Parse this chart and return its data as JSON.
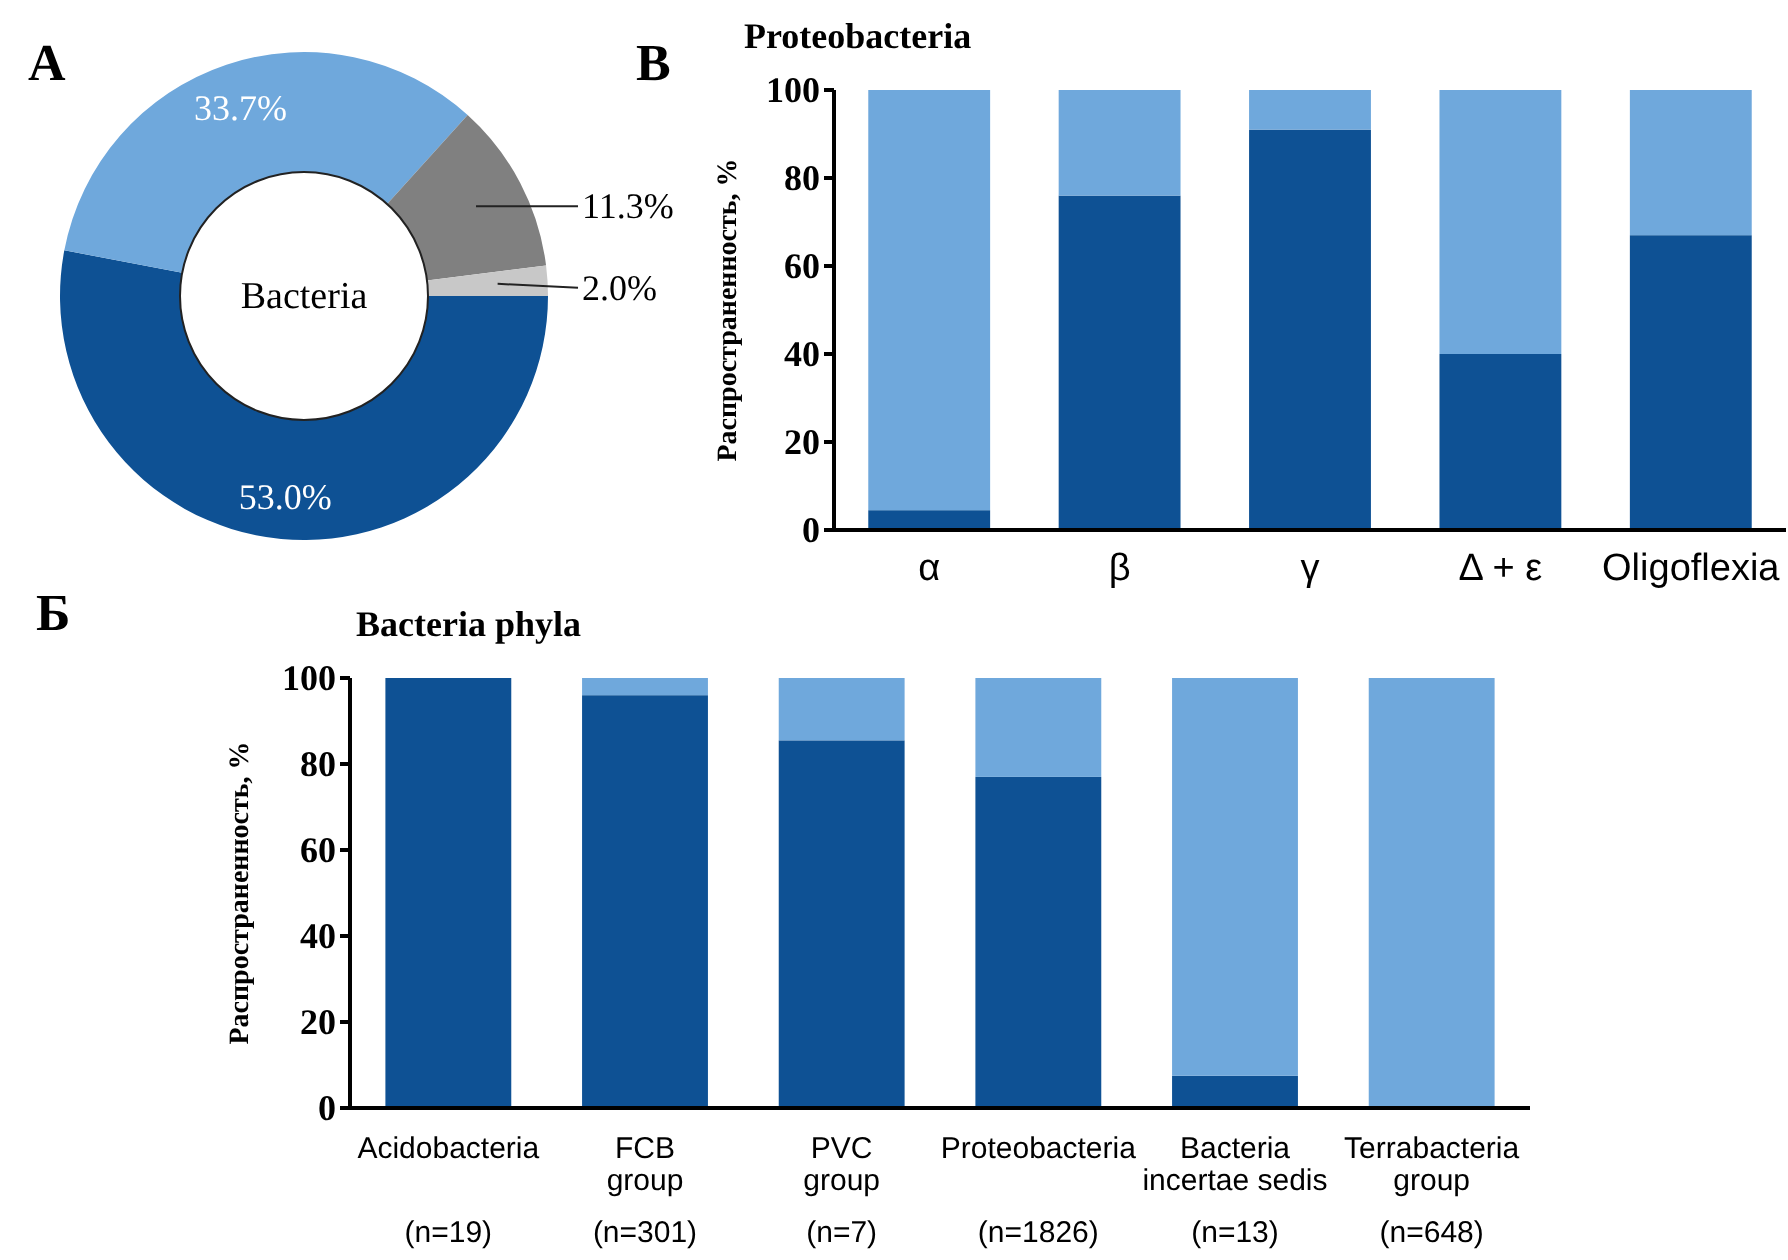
{
  "chart_data": [
    {
      "type": "donut",
      "title": "Bacteria",
      "annotations": [
        "A"
      ],
      "categories": [
        null,
        null,
        null,
        null
      ],
      "values": [
        53.0,
        33.7,
        11.3,
        2.0
      ],
      "colors": [
        "#0e5194",
        "#6fa8dc",
        "#808080",
        "#c8c8c8"
      ],
      "value_labels": [
        "53.0%",
        "33.7%",
        "11.3%",
        "2.0%"
      ]
    },
    {
      "type": "bar",
      "stacked": true,
      "title": "Proteobacteria",
      "annotations": [
        "B"
      ],
      "ylabel": "Распространенность, %",
      "categories": [
        "α",
        "β",
        "γ",
        "Δ + ε",
        "Oligoflexia"
      ],
      "ylim": [
        0,
        100
      ],
      "yticks": [
        0,
        20,
        40,
        60,
        80,
        100
      ],
      "series": [
        {
          "color": "#0e5194",
          "values": [
            4.5,
            76,
            91,
            40,
            67
          ]
        },
        {
          "color": "#6fa8dc",
          "values": [
            95.5,
            24,
            9,
            60,
            33
          ]
        }
      ]
    },
    {
      "type": "bar",
      "stacked": true,
      "title": "Bacteria phyla",
      "annotations": [
        "Б"
      ],
      "ylabel": "Распространенность, %",
      "categories": [
        "Acidobacteria\n\n(n=19)",
        "FCB\ngroup\n(n=301)",
        "PVC\ngroup\n(n=7)",
        "Proteobacteria\n\n(n=1826)",
        "Bacteria\nincertae sedis\n(n=13)",
        "Terrabacteria\ngroup\n(n=648)"
      ],
      "ylim": [
        0,
        100
      ],
      "yticks": [
        0,
        20,
        40,
        60,
        80,
        100
      ],
      "series": [
        {
          "color": "#0e5194",
          "values": [
            100,
            96,
            85.5,
            77,
            7.5,
            0
          ]
        },
        {
          "color": "#6fa8dc",
          "values": [
            0,
            4,
            14.5,
            23,
            92.5,
            100
          ]
        }
      ]
    }
  ]
}
